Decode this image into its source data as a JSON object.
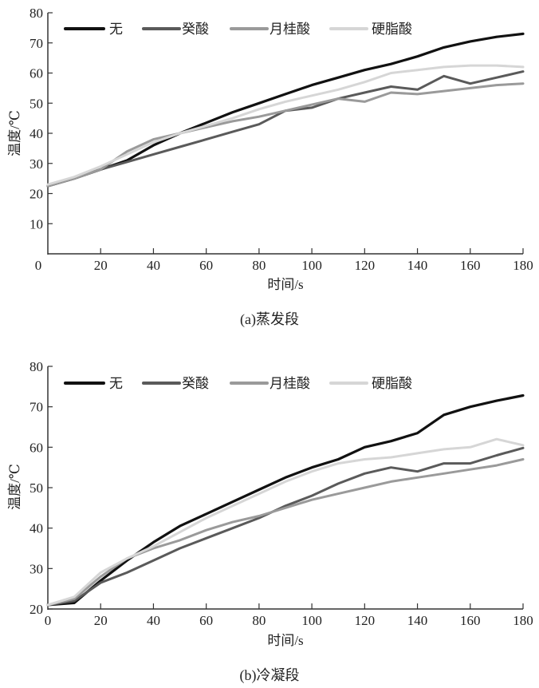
{
  "chart_data": [
    {
      "type": "line",
      "caption": "(a)蒸发段",
      "xlabel": "时间/s",
      "ylabel": "温度/℃",
      "xlim": [
        0,
        180
      ],
      "ylim": [
        0,
        80
      ],
      "xticks": [
        0,
        20,
        40,
        60,
        80,
        100,
        120,
        140,
        160,
        180
      ],
      "yticks": [
        10,
        20,
        30,
        40,
        50,
        60,
        70,
        80
      ],
      "grid": false,
      "legend_placement": "top",
      "x": [
        0,
        10,
        20,
        30,
        40,
        50,
        60,
        70,
        80,
        90,
        100,
        110,
        120,
        130,
        140,
        150,
        160,
        170,
        180
      ],
      "series": [
        {
          "name": "无",
          "color": "#111111",
          "values": [
            22.5,
            25,
            28,
            31,
            36,
            40,
            43.5,
            47,
            50,
            53,
            56,
            58.5,
            61,
            63,
            65.5,
            68.5,
            70.5,
            72,
            73
          ]
        },
        {
          "name": "癸酸",
          "color": "#5a5a5a",
          "values": [
            22.5,
            25,
            28,
            30.5,
            33,
            35.5,
            38,
            40.5,
            43,
            47.5,
            48.5,
            51.5,
            53.5,
            55.5,
            54.5,
            59,
            56.5,
            58.5,
            60.5
          ]
        },
        {
          "name": "月桂酸",
          "color": "#9a9a9a",
          "values": [
            22.5,
            25,
            28,
            34,
            38,
            40,
            42,
            44,
            45.5,
            47.5,
            49.5,
            51.5,
            50.5,
            53.5,
            53,
            54,
            55,
            56,
            56.5
          ]
        },
        {
          "name": "硬脂酸",
          "color": "#d6d6d6",
          "values": [
            23,
            25.5,
            29,
            33,
            37,
            40,
            42.5,
            45,
            48,
            50.5,
            52.5,
            54.5,
            57,
            60,
            61,
            62,
            62.5,
            62.5,
            62
          ]
        }
      ]
    },
    {
      "type": "line",
      "caption": "(b)冷凝段",
      "xlabel": "时间/s",
      "ylabel": "温度/℃",
      "xlim": [
        0,
        180
      ],
      "ylim": [
        20,
        80
      ],
      "xticks": [
        0,
        20,
        40,
        60,
        80,
        100,
        120,
        140,
        160,
        180
      ],
      "yticks": [
        20,
        30,
        40,
        50,
        60,
        70,
        80
      ],
      "grid": false,
      "legend_placement": "top",
      "x": [
        0,
        10,
        20,
        30,
        40,
        50,
        60,
        70,
        80,
        90,
        100,
        110,
        120,
        130,
        140,
        150,
        160,
        170,
        180
      ],
      "series": [
        {
          "name": "无",
          "color": "#111111",
          "values": [
            21,
            21.5,
            27,
            32,
            36.5,
            40.5,
            43.5,
            46.5,
            49.5,
            52.5,
            55,
            57,
            60,
            61.5,
            63.5,
            68,
            70,
            71.5,
            72.8
          ]
        },
        {
          "name": "癸酸",
          "color": "#5a5a5a",
          "values": [
            21,
            22,
            26.5,
            29,
            32,
            35,
            37.5,
            40,
            42.5,
            45.5,
            48,
            51,
            53.5,
            55,
            54,
            56,
            56,
            58,
            59.8
          ]
        },
        {
          "name": "月桂酸",
          "color": "#9a9a9a",
          "values": [
            21,
            22.5,
            28,
            32.5,
            35,
            37,
            39.5,
            41.5,
            43,
            45,
            47,
            48.5,
            50,
            51.5,
            52.5,
            53.5,
            54.5,
            55.5,
            57
          ]
        },
        {
          "name": "硬脂酸",
          "color": "#d6d6d6",
          "values": [
            21,
            23,
            29,
            32.5,
            35.5,
            39,
            42.5,
            45.5,
            48.5,
            51.5,
            54,
            56,
            57,
            57.5,
            58.5,
            59.5,
            60,
            62,
            60.5
          ]
        }
      ]
    }
  ]
}
